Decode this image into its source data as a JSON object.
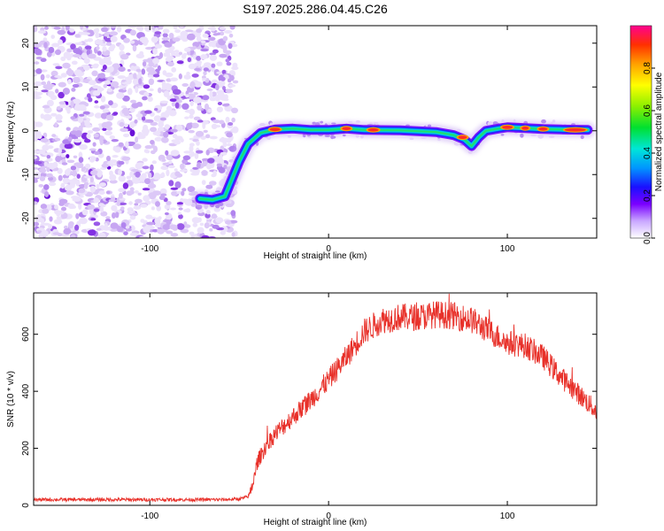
{
  "figure_title": "S197.2025.286.04.45.C26",
  "chart_data": [
    {
      "type": "heatmap",
      "title": "",
      "xlabel": "Height of straight line (km)",
      "ylabel": "Frequency (Hz)",
      "xlim": [
        -165,
        150
      ],
      "ylim": [
        -24.5,
        24
      ],
      "xticks": [
        -100,
        0,
        100
      ],
      "yticks": [
        -20,
        -10,
        0,
        10,
        20
      ],
      "ridge": {
        "x": [
          -72,
          -65,
          -58,
          -55,
          -50,
          -45,
          -38,
          -30,
          -20,
          -10,
          0,
          10,
          20,
          40,
          60,
          70,
          76,
          80,
          84,
          88,
          95,
          100,
          110,
          120,
          130,
          145
        ],
        "freq": [
          -15.5,
          -15.8,
          -15,
          -12,
          -7,
          -3,
          -0.5,
          0.3,
          0.5,
          0.2,
          0.2,
          0.5,
          0.2,
          0.1,
          -0.3,
          -1,
          -2,
          -3.5,
          -1.5,
          0,
          0.5,
          0.8,
          0.6,
          0.4,
          0.3,
          0.2
        ]
      },
      "noise_region_x": [
        -165,
        -55
      ],
      "colorbar": {
        "label": "Normalized spectral amplitude",
        "range": [
          0,
          1
        ],
        "ticks": [
          "0.0",
          "0.2",
          "0.4",
          "0.6",
          "0.8"
        ]
      }
    },
    {
      "type": "line",
      "title": "",
      "xlabel": "Height of straight line (km)",
      "ylabel": "SNR (10 * v/v)",
      "xlim": [
        -165,
        150
      ],
      "ylim": [
        0,
        745
      ],
      "xticks": [
        -100,
        0,
        100
      ],
      "yticks": [
        0,
        200,
        400,
        600
      ],
      "color": "#e8312a",
      "series": [
        {
          "name": "SNR",
          "x": [
            -165,
            -140,
            -120,
            -100,
            -80,
            -60,
            -50,
            -45,
            -42,
            -40,
            -35,
            -30,
            -20,
            -10,
            0,
            10,
            20,
            30,
            40,
            50,
            60,
            70,
            80,
            90,
            100,
            110,
            120,
            130,
            140,
            150
          ],
          "values": [
            20,
            20,
            20,
            20,
            20,
            20,
            22,
            30,
            80,
            150,
            210,
            250,
            310,
            370,
            440,
            520,
            610,
            650,
            660,
            660,
            670,
            665,
            650,
            610,
            570,
            560,
            520,
            450,
            390,
            330
          ]
        }
      ]
    }
  ]
}
